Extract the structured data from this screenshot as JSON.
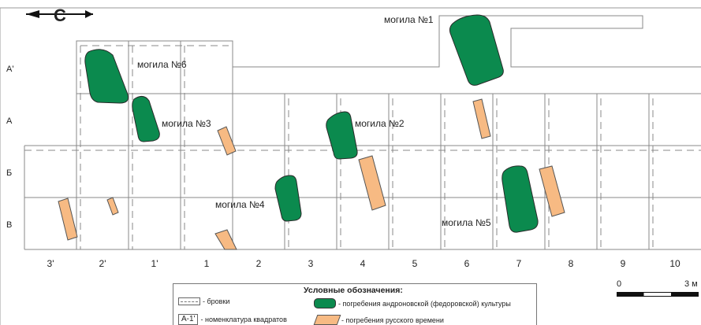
{
  "north_label": "С",
  "columns": [
    "3'",
    "2'",
    "1'",
    "1",
    "2",
    "3",
    "4",
    "5",
    "6",
    "7",
    "8",
    "9",
    "10"
  ],
  "rows": [
    "А'",
    "А",
    "Б",
    "В"
  ],
  "graves": {
    "g1": "могила №1",
    "g2": "могила №2",
    "g3": "могила №3",
    "g4": "могила №4",
    "g5": "могила №5",
    "g6": "могила №6"
  },
  "legend": {
    "title": "Условные обозначения:",
    "brovki": "- бровки",
    "nomenclature_swatch": "А-1'",
    "nomenclature": "- номенклатура квадратов",
    "andronovo": "- погребения андроновской (федоровской) культуры",
    "russian": "- погребения русского времени"
  },
  "scale": {
    "start": "0",
    "end": "3 м"
  },
  "colors": {
    "andronovo": "#0b8a4e",
    "russian": "#f7ba83",
    "grid": "#888888"
  }
}
